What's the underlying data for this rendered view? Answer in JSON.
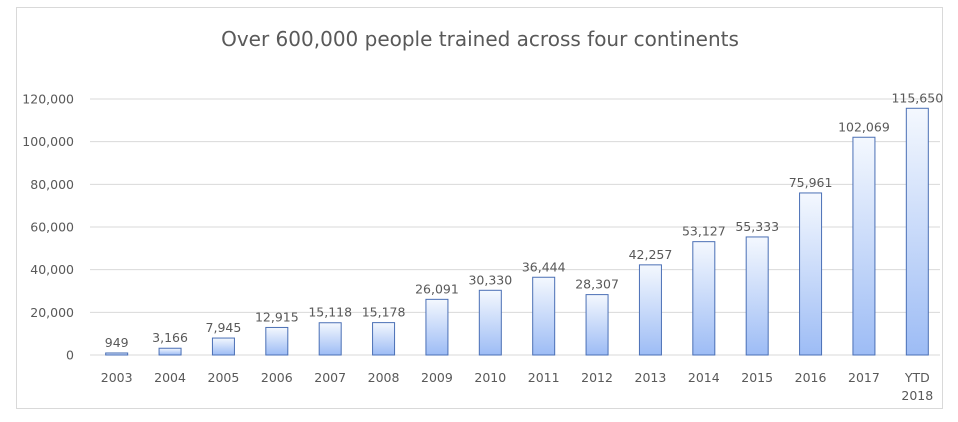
{
  "chart_data": {
    "type": "bar",
    "title": "Over 600,000 people trained across four continents",
    "xlabel": "",
    "ylabel": "",
    "ylim": [
      0,
      120000
    ],
    "yticks": [
      0,
      20000,
      40000,
      60000,
      80000,
      100000,
      120000
    ],
    "ytick_labels": [
      "0",
      "20,000",
      "40,000",
      "60,000",
      "80,000",
      "100,000",
      "120,000"
    ],
    "grid": true,
    "legend": "none",
    "categories": [
      [
        "2003"
      ],
      [
        "2004"
      ],
      [
        "2005"
      ],
      [
        "2006"
      ],
      [
        "2007"
      ],
      [
        "2008"
      ],
      [
        "2009"
      ],
      [
        "2010"
      ],
      [
        "2011"
      ],
      [
        "2012"
      ],
      [
        "2013"
      ],
      [
        "2014"
      ],
      [
        "2015"
      ],
      [
        "2016"
      ],
      [
        "2017"
      ],
      [
        "YTD",
        "2018"
      ]
    ],
    "values": [
      949,
      3166,
      7945,
      12915,
      15118,
      15178,
      26091,
      30330,
      36444,
      28307,
      42257,
      53127,
      55333,
      75961,
      102069,
      115650
    ],
    "data_labels": [
      "949",
      "3,166",
      "7,945",
      "12,915",
      "15,118",
      "15,178",
      "26,091",
      "30,330",
      "36,444",
      "28,307",
      "42,257",
      "53,127",
      "55,333",
      "75,961",
      "102,069",
      "115,650"
    ],
    "colors": {
      "bar_top": "#f4f8fe",
      "bar_bottom": "#9dbcf5",
      "bar_border": "#4a6fb5",
      "text": "#595959",
      "grid": "#d9d9d9"
    }
  }
}
